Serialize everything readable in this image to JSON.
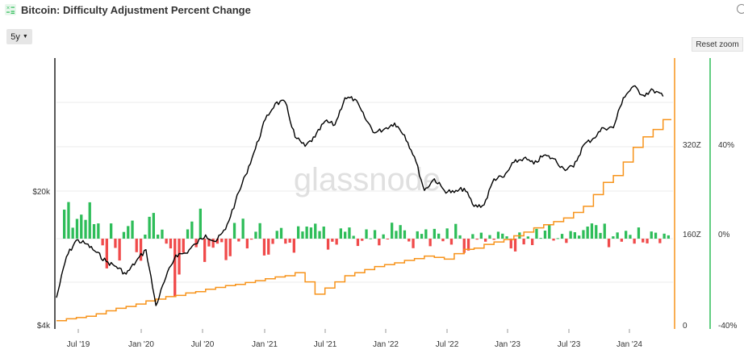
{
  "header": {
    "title": "Bitcoin: Difficulty Adjustment Percent Change"
  },
  "toolbar": {
    "range_label": "5y",
    "reset_zoom_label": "Reset zoom"
  },
  "watermark": "glassnode",
  "colors": {
    "price": "#000000",
    "difficulty": "#f7931a",
    "positive": "#2ebd59",
    "negative": "#f04a4a",
    "grid": "#ebebeb"
  },
  "chart_data": {
    "type": "line",
    "title": "Bitcoin: Difficulty Adjustment Percent Change",
    "x_ticks": [
      "Jul '19",
      "Jan '20",
      "Jul '20",
      "Jan '21",
      "Jul '21",
      "Jan '22",
      "Jul '22",
      "Jan '23",
      "Jul '23",
      "Jan '24"
    ],
    "x_range": [
      "2019-05",
      "2024-07"
    ],
    "y_left": {
      "scale": "log",
      "ticks": [
        "$4k",
        "$20k"
      ],
      "range": [
        4000,
        75000
      ]
    },
    "y_mid": {
      "ticks": [
        "0",
        "160Z",
        "320Z"
      ],
      "range": [
        0,
        450
      ]
    },
    "y_right": {
      "ticks": [
        "-40%",
        "0%",
        "40%"
      ],
      "range": [
        -40,
        40
      ]
    },
    "grid": true,
    "legend": "none",
    "series": [
      {
        "axis": "left",
        "points": [
          [
            "2019-05",
            5500
          ],
          [
            "2019-06",
            9000
          ],
          [
            "2019-07",
            11000
          ],
          [
            "2019-08",
            10500
          ],
          [
            "2019-09",
            9500
          ],
          [
            "2019-10",
            8500
          ],
          [
            "2019-11",
            8000
          ],
          [
            "2019-12",
            7300
          ],
          [
            "2020-01",
            8500
          ],
          [
            "2020-02",
            9800
          ],
          [
            "2020-03",
            5000
          ],
          [
            "2020-04",
            7000
          ],
          [
            "2020-05",
            9200
          ],
          [
            "2020-06",
            9400
          ],
          [
            "2020-07",
            10500
          ],
          [
            "2020-08",
            11700
          ],
          [
            "2020-09",
            10800
          ],
          [
            "2020-10",
            12500
          ],
          [
            "2020-11",
            17500
          ],
          [
            "2020-12",
            24000
          ],
          [
            "2021-01",
            33000
          ],
          [
            "2021-02",
            47000
          ],
          [
            "2021-03",
            57000
          ],
          [
            "2021-04",
            58000
          ],
          [
            "2021-05",
            38000
          ],
          [
            "2021-06",
            34000
          ],
          [
            "2021-07",
            38000
          ],
          [
            "2021-08",
            46000
          ],
          [
            "2021-09",
            44000
          ],
          [
            "2021-10",
            61000
          ],
          [
            "2021-11",
            60000
          ],
          [
            "2021-12",
            48000
          ],
          [
            "2022-01",
            40000
          ],
          [
            "2022-02",
            42000
          ],
          [
            "2022-03",
            45000
          ],
          [
            "2022-04",
            39000
          ],
          [
            "2022-05",
            30000
          ],
          [
            "2022-06",
            20000
          ],
          [
            "2022-07",
            23000
          ],
          [
            "2022-08",
            20000
          ],
          [
            "2022-09",
            19500
          ],
          [
            "2022-10",
            20500
          ],
          [
            "2022-11",
            16500
          ],
          [
            "2022-12",
            16800
          ],
          [
            "2023-01",
            23000
          ],
          [
            "2023-02",
            23500
          ],
          [
            "2023-03",
            28000
          ],
          [
            "2023-04",
            29500
          ],
          [
            "2023-05",
            27500
          ],
          [
            "2023-06",
            30500
          ],
          [
            "2023-07",
            29300
          ],
          [
            "2023-08",
            26000
          ],
          [
            "2023-09",
            26500
          ],
          [
            "2023-10",
            34500
          ],
          [
            "2023-11",
            37500
          ],
          [
            "2023-12",
            42500
          ],
          [
            "2024-01",
            42500
          ],
          [
            "2024-02",
            61000
          ],
          [
            "2024-03",
            70000
          ],
          [
            "2024-04",
            63000
          ],
          [
            "2024-05",
            67000
          ],
          [
            "2024-06",
            62000
          ]
        ]
      },
      {
        "axis": "mid",
        "points": [
          [
            "2019-05",
            7
          ],
          [
            "2019-06",
            10
          ],
          [
            "2019-07",
            12
          ],
          [
            "2019-08",
            14
          ],
          [
            "2019-09",
            18
          ],
          [
            "2019-10",
            23
          ],
          [
            "2019-11",
            27
          ],
          [
            "2019-12",
            30
          ],
          [
            "2020-01",
            34
          ],
          [
            "2020-02",
            39
          ],
          [
            "2020-03",
            42
          ],
          [
            "2020-04",
            46
          ],
          [
            "2020-05",
            48
          ],
          [
            "2020-06",
            52
          ],
          [
            "2020-07",
            54
          ],
          [
            "2020-08",
            58
          ],
          [
            "2020-09",
            61
          ],
          [
            "2020-10",
            64
          ],
          [
            "2020-11",
            66
          ],
          [
            "2020-12",
            69
          ],
          [
            "2021-01",
            72
          ],
          [
            "2021-02",
            75
          ],
          [
            "2021-03",
            78
          ],
          [
            "2021-04",
            80
          ],
          [
            "2021-05",
            85
          ],
          [
            "2021-06",
            70
          ],
          [
            "2021-07",
            50
          ],
          [
            "2021-08",
            60
          ],
          [
            "2021-09",
            70
          ],
          [
            "2021-10",
            80
          ],
          [
            "2021-11",
            85
          ],
          [
            "2021-12",
            90
          ],
          [
            "2022-01",
            95
          ],
          [
            "2022-02",
            98
          ],
          [
            "2022-03",
            101
          ],
          [
            "2022-04",
            105
          ],
          [
            "2022-05",
            108
          ],
          [
            "2022-06",
            112
          ],
          [
            "2022-07",
            110
          ],
          [
            "2022-08",
            107
          ],
          [
            "2022-09",
            116
          ],
          [
            "2022-10",
            123
          ],
          [
            "2022-11",
            125
          ],
          [
            "2022-12",
            131
          ],
          [
            "2023-01",
            135
          ],
          [
            "2023-02",
            139
          ],
          [
            "2023-03",
            145
          ],
          [
            "2023-04",
            151
          ],
          [
            "2023-05",
            158
          ],
          [
            "2023-06",
            163
          ],
          [
            "2023-07",
            168
          ],
          [
            "2023-08",
            174
          ],
          [
            "2023-09",
            183
          ],
          [
            "2023-10",
            193
          ],
          [
            "2023-11",
            212
          ],
          [
            "2023-12",
            232
          ],
          [
            "2024-01",
            243
          ],
          [
            "2024-02",
            265
          ],
          [
            "2024-03",
            289
          ],
          [
            "2024-04",
            306
          ],
          [
            "2024-05",
            318
          ],
          [
            "2024-06",
            334
          ]
        ]
      },
      {
        "type": "bar",
        "axis": "right",
        "values": [
          12.2,
          15.4,
          4.6,
          8.3,
          10.1,
          7.9,
          15.3,
          6.1,
          6.4,
          -2.8,
          -12.5,
          6.4,
          -3.9,
          -9.2,
          2.8,
          5.3,
          7.6,
          -5.7,
          -9.3,
          1.7,
          9.2,
          10.8,
          1.7,
          3.8,
          -2.1,
          -4.1,
          -24.5,
          -15.1,
          -5.9,
          3.9,
          7.2,
          -3.6,
          12.6,
          -9.8,
          -3.3,
          -3.8,
          -2.1,
          -1.5,
          -9.0,
          -7.4,
          6.6,
          -1.2,
          8.4,
          -4.1,
          -0.4,
          2.9,
          6.5,
          -7.1,
          -6.7,
          -2.2,
          3.3,
          4.5,
          -2.1,
          -1.7,
          -5.9,
          5.2,
          3.0,
          5.1,
          4.7,
          6.3,
          3.2,
          5.1,
          -4.6,
          -1.3,
          -2.5,
          4.3,
          2.9,
          4.7,
          1.2,
          -3.1,
          -0.9,
          3.9,
          0.1,
          3.6,
          -2.8,
          1.8,
          -0.2,
          6.7,
          3.3,
          5.7,
          3.5,
          -1.2,
          -4.0,
          3.1,
          2.0,
          3.9,
          -3.2,
          4.1,
          2.1,
          -1.1,
          4.3,
          -2.5,
          6.2,
          1.4,
          -6.0,
          -5.0,
          1.9,
          -0.4,
          2.5,
          -1.3,
          1.5,
          -0.5,
          2.9,
          2.1,
          1.0,
          -4.1,
          -5.4,
          2.6,
          -2.4,
          0.9,
          -2.7,
          4.1,
          0.3,
          3.4,
          5.7,
          -0.8,
          0.2,
          2.0,
          -1.8,
          3.2,
          2.7,
          1.3,
          3.6,
          5.1,
          6.4,
          5.7,
          2.4,
          6.3,
          -3.6,
          1.0,
          2.6,
          -1.3,
          3.3,
          1.6,
          -2.1,
          4.7,
          -1.6,
          -2.0,
          3.0,
          2.5,
          -1.9,
          2.1,
          1.4
        ]
      }
    ]
  }
}
